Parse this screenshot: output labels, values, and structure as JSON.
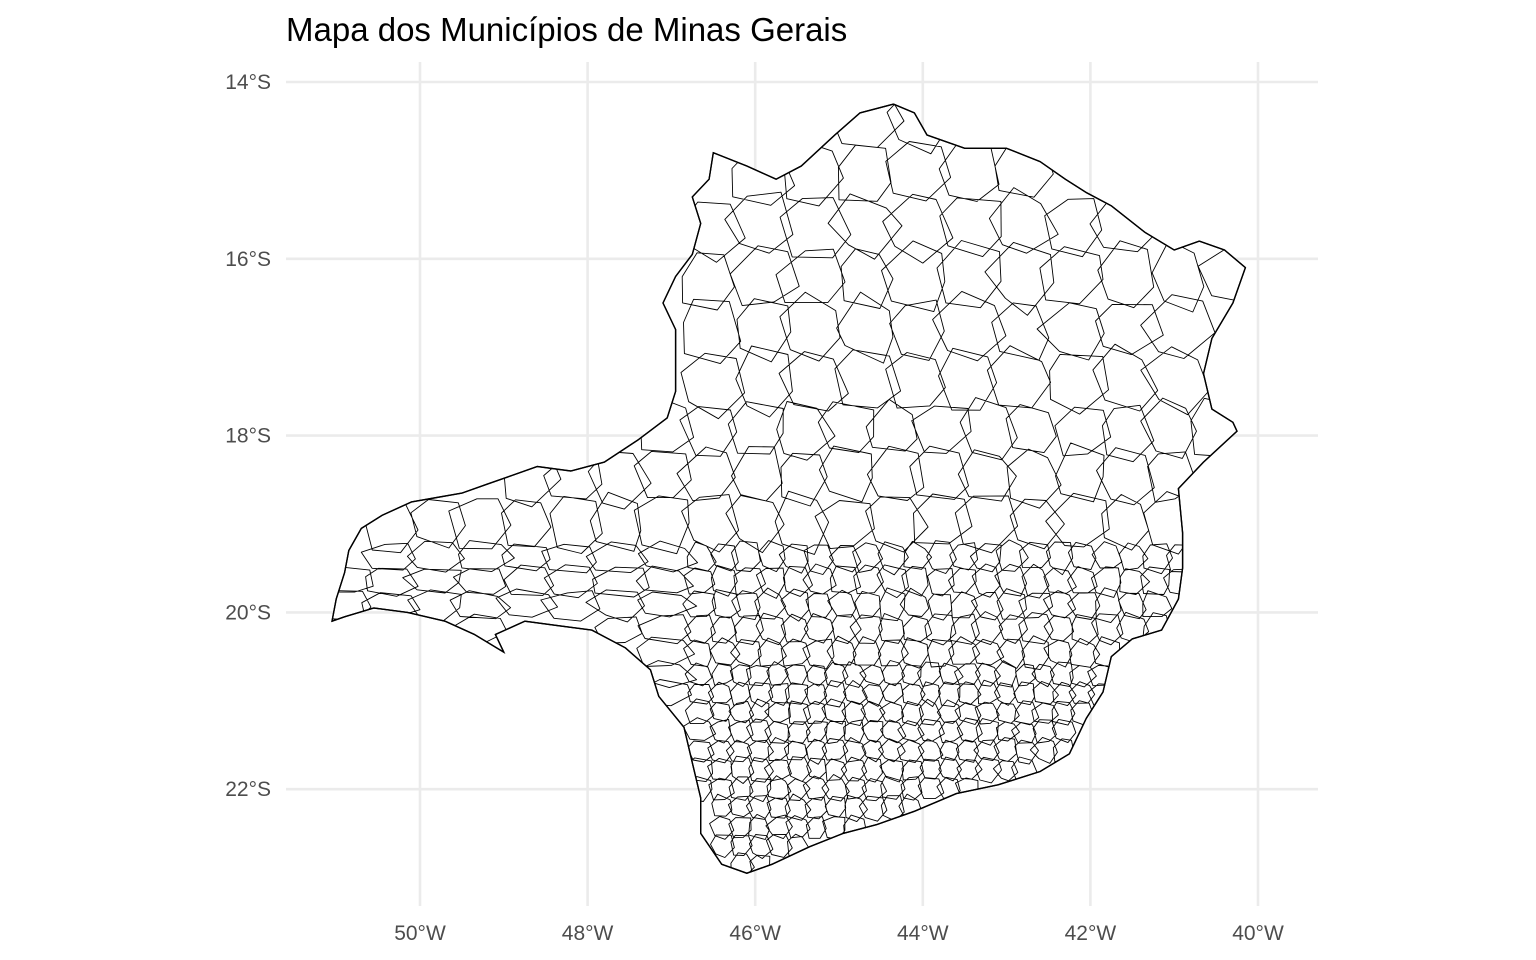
{
  "chart_data": {
    "type": "choropleth-map",
    "title": "Mapa dos Municípios de Minas Gerais",
    "xlabel": "",
    "ylabel": "",
    "x_ticks": [
      {
        "value": -50,
        "label": "50°W"
      },
      {
        "value": -48,
        "label": "48°W"
      },
      {
        "value": -46,
        "label": "46°W"
      },
      {
        "value": -44,
        "label": "44°W"
      },
      {
        "value": -42,
        "label": "42°W"
      },
      {
        "value": -40,
        "label": "40°W"
      }
    ],
    "y_ticks": [
      {
        "value": -14,
        "label": "14°S"
      },
      {
        "value": -16,
        "label": "16°S"
      },
      {
        "value": -18,
        "label": "18°S"
      },
      {
        "value": -20,
        "label": "20°S"
      },
      {
        "value": -22,
        "label": "22°S"
      }
    ],
    "xlim": [
      -51.3,
      -39.3
    ],
    "ylim": [
      -23.2,
      -13.8
    ],
    "grid": true,
    "fill_color": "#ffffff",
    "border_color": "#000000",
    "grid_color": "#ebebeb",
    "state_outline": [
      [
        -51.05,
        -20.1
      ],
      [
        -51.0,
        -19.85
      ],
      [
        -50.9,
        -19.55
      ],
      [
        -50.85,
        -19.3
      ],
      [
        -50.7,
        -19.05
      ],
      [
        -50.45,
        -18.9
      ],
      [
        -50.1,
        -18.75
      ],
      [
        -49.8,
        -18.7
      ],
      [
        -49.5,
        -18.65
      ],
      [
        -49.2,
        -18.55
      ],
      [
        -48.9,
        -18.45
      ],
      [
        -48.6,
        -18.35
      ],
      [
        -48.2,
        -18.4
      ],
      [
        -47.8,
        -18.3
      ],
      [
        -47.4,
        -18.05
      ],
      [
        -47.05,
        -17.8
      ],
      [
        -46.95,
        -17.5
      ],
      [
        -46.95,
        -17.15
      ],
      [
        -46.95,
        -16.8
      ],
      [
        -47.1,
        -16.5
      ],
      [
        -46.95,
        -16.2
      ],
      [
        -46.75,
        -15.95
      ],
      [
        -46.65,
        -15.6
      ],
      [
        -46.75,
        -15.3
      ],
      [
        -46.55,
        -15.1
      ],
      [
        -46.5,
        -14.8
      ],
      [
        -46.1,
        -14.95
      ],
      [
        -45.75,
        -15.1
      ],
      [
        -45.45,
        -14.95
      ],
      [
        -45.05,
        -14.6
      ],
      [
        -44.75,
        -14.35
      ],
      [
        -44.35,
        -14.25
      ],
      [
        -44.1,
        -14.35
      ],
      [
        -43.95,
        -14.6
      ],
      [
        -43.5,
        -14.75
      ],
      [
        -43.0,
        -14.75
      ],
      [
        -42.6,
        -14.9
      ],
      [
        -42.3,
        -15.1
      ],
      [
        -42.05,
        -15.25
      ],
      [
        -41.75,
        -15.4
      ],
      [
        -41.35,
        -15.7
      ],
      [
        -41.0,
        -15.9
      ],
      [
        -40.7,
        -15.8
      ],
      [
        -40.4,
        -15.9
      ],
      [
        -40.15,
        -16.1
      ],
      [
        -40.3,
        -16.5
      ],
      [
        -40.55,
        -16.9
      ],
      [
        -40.65,
        -17.3
      ],
      [
        -40.55,
        -17.7
      ],
      [
        -40.3,
        -17.85
      ],
      [
        -40.25,
        -17.95
      ],
      [
        -40.65,
        -18.3
      ],
      [
        -40.95,
        -18.6
      ],
      [
        -40.9,
        -19.1
      ],
      [
        -40.9,
        -19.5
      ],
      [
        -40.95,
        -19.85
      ],
      [
        -41.15,
        -20.2
      ],
      [
        -41.5,
        -20.3
      ],
      [
        -41.75,
        -20.5
      ],
      [
        -41.85,
        -20.9
      ],
      [
        -42.05,
        -21.2
      ],
      [
        -42.25,
        -21.6
      ],
      [
        -42.6,
        -21.8
      ],
      [
        -43.1,
        -21.95
      ],
      [
        -43.6,
        -22.05
      ],
      [
        -44.1,
        -22.25
      ],
      [
        -44.55,
        -22.4
      ],
      [
        -44.95,
        -22.5
      ],
      [
        -45.35,
        -22.65
      ],
      [
        -45.8,
        -22.85
      ],
      [
        -46.1,
        -22.95
      ],
      [
        -46.4,
        -22.85
      ],
      [
        -46.65,
        -22.5
      ],
      [
        -46.65,
        -22.1
      ],
      [
        -46.75,
        -21.7
      ],
      [
        -46.85,
        -21.3
      ],
      [
        -47.15,
        -20.95
      ],
      [
        -47.25,
        -20.65
      ],
      [
        -47.55,
        -20.4
      ],
      [
        -47.95,
        -20.2
      ],
      [
        -48.35,
        -20.15
      ],
      [
        -48.75,
        -20.1
      ],
      [
        -49.1,
        -20.25
      ],
      [
        -49.0,
        -20.45
      ],
      [
        -49.35,
        -20.25
      ],
      [
        -49.7,
        -20.1
      ],
      [
        -50.15,
        -20.0
      ],
      [
        -50.55,
        -19.95
      ],
      [
        -50.9,
        -20.05
      ]
    ]
  }
}
